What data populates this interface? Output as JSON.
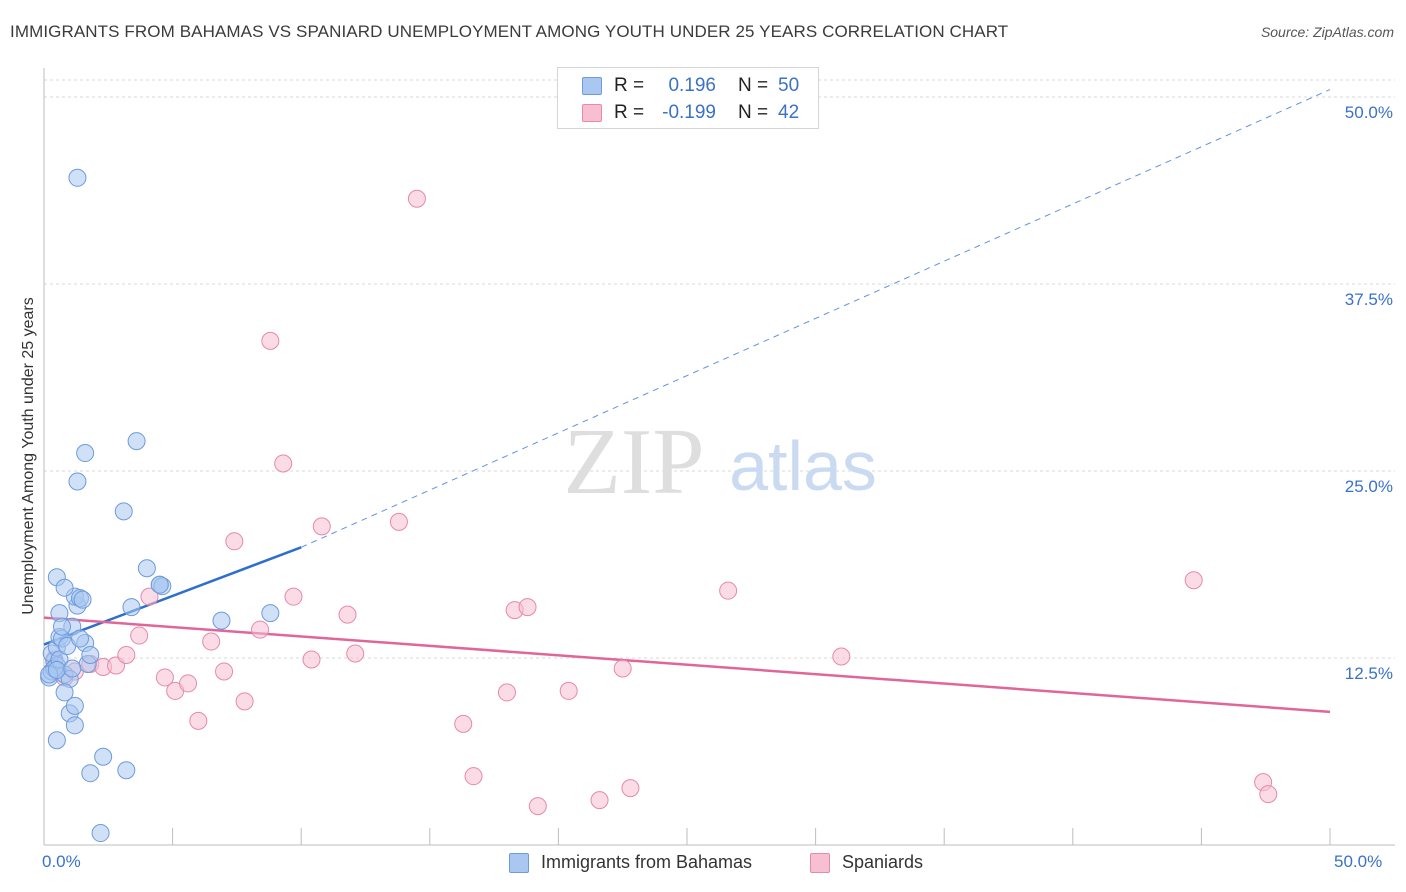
{
  "title": "IMMIGRANTS FROM BAHAMAS VS SPANIARD UNEMPLOYMENT AMONG YOUTH UNDER 25 YEARS CORRELATION CHART",
  "source": "Source: ZipAtlas.com",
  "watermark": {
    "zip": "ZIP",
    "atlas": "atlas"
  },
  "legend": {
    "r_label": "R =",
    "n_label": "N =",
    "series": [
      {
        "name": "Immigrants from Bahamas",
        "r": "0.196",
        "n": "50",
        "fill": "#a9c7f0",
        "stroke": "#6d9bdc"
      },
      {
        "name": "Spaniards",
        "r": "-0.199",
        "n": "42",
        "fill": "#f7bfd1",
        "stroke": "#e58aa8"
      }
    ]
  },
  "colors": {
    "blue_line": "#2e6fce",
    "pink_line": "#e0669a",
    "axis_text": "#3a72c8",
    "grid": "#d9d9d9"
  },
  "chart_data": {
    "type": "scatter",
    "title": "IMMIGRANTS FROM BAHAMAS VS SPANIARD UNEMPLOYMENT AMONG YOUTH UNDER 25 YEARS CORRELATION CHART",
    "xlabel": "",
    "ylabel": "Unemployment Among Youth under 25 years",
    "xlim": [
      0,
      50
    ],
    "ylim": [
      0,
      50
    ],
    "x_tick_labels": [
      "0.0%",
      "50.0%"
    ],
    "y_ticks": [
      12.5,
      25.0,
      37.5,
      50.0
    ],
    "y_tick_labels": [
      "12.5%",
      "25.0%",
      "37.5%",
      "50.0%"
    ],
    "series": [
      {
        "name": "Immigrants from Bahamas",
        "r": 0.196,
        "n": 50,
        "trend": {
          "x0": 0,
          "y0": 13.4,
          "x1": 10,
          "y1": 19.9,
          "extend_to_x": 50,
          "extend_to_y": 50.5
        },
        "points": [
          [
            0.2,
            11.2
          ],
          [
            0.3,
            11.6
          ],
          [
            0.4,
            12.3
          ],
          [
            0.3,
            12.8
          ],
          [
            0.5,
            13.2
          ],
          [
            0.6,
            13.9
          ],
          [
            0.5,
            12.0
          ],
          [
            0.8,
            11.4
          ],
          [
            0.4,
            11.8
          ],
          [
            0.6,
            12.4
          ],
          [
            0.7,
            13.8
          ],
          [
            0.9,
            13.3
          ],
          [
            1.0,
            11.1
          ],
          [
            0.8,
            10.2
          ],
          [
            1.1,
            14.6
          ],
          [
            1.3,
            16.0
          ],
          [
            1.2,
            16.6
          ],
          [
            1.4,
            16.5
          ],
          [
            0.6,
            15.5
          ],
          [
            0.7,
            14.6
          ],
          [
            1.5,
            16.4
          ],
          [
            1.6,
            13.5
          ],
          [
            1.4,
            13.8
          ],
          [
            1.7,
            12.1
          ],
          [
            1.8,
            12.7
          ],
          [
            0.5,
            17.9
          ],
          [
            0.8,
            17.2
          ],
          [
            1.3,
            24.3
          ],
          [
            1.6,
            26.2
          ],
          [
            1.3,
            44.6
          ],
          [
            3.6,
            27.0
          ],
          [
            3.1,
            22.3
          ],
          [
            4.5,
            17.4
          ],
          [
            4.6,
            17.3
          ],
          [
            4.5,
            17.4
          ],
          [
            3.4,
            15.9
          ],
          [
            4.0,
            18.5
          ],
          [
            6.9,
            15.0
          ],
          [
            8.8,
            15.5
          ],
          [
            1.0,
            8.8
          ],
          [
            1.2,
            9.3
          ],
          [
            1.2,
            8.0
          ],
          [
            0.5,
            7.0
          ],
          [
            1.8,
            4.8
          ],
          [
            2.3,
            5.9
          ],
          [
            3.2,
            5.0
          ],
          [
            2.2,
            0.8
          ],
          [
            0.2,
            11.4
          ],
          [
            0.5,
            11.7
          ],
          [
            1.1,
            11.8
          ]
        ]
      },
      {
        "name": "Spaniards",
        "r": -0.199,
        "n": 42,
        "trend": {
          "x0": 0,
          "y0": 15.2,
          "x1": 50,
          "y1": 8.9
        },
        "points": [
          [
            0.4,
            12.4
          ],
          [
            0.8,
            11.2
          ],
          [
            1.2,
            11.6
          ],
          [
            1.8,
            12.1
          ],
          [
            2.3,
            11.9
          ],
          [
            2.8,
            12.0
          ],
          [
            3.2,
            12.7
          ],
          [
            3.7,
            14.0
          ],
          [
            4.1,
            16.6
          ],
          [
            4.7,
            11.2
          ],
          [
            5.1,
            10.3
          ],
          [
            5.6,
            10.8
          ],
          [
            6.0,
            8.3
          ],
          [
            6.5,
            13.6
          ],
          [
            7.0,
            11.6
          ],
          [
            7.4,
            20.3
          ],
          [
            7.8,
            9.6
          ],
          [
            8.4,
            14.4
          ],
          [
            8.8,
            33.7
          ],
          [
            9.3,
            25.5
          ],
          [
            9.7,
            16.6
          ],
          [
            10.4,
            12.4
          ],
          [
            10.8,
            21.3
          ],
          [
            11.8,
            15.4
          ],
          [
            12.1,
            12.8
          ],
          [
            13.8,
            21.6
          ],
          [
            14.5,
            43.2
          ],
          [
            16.3,
            8.1
          ],
          [
            16.7,
            4.6
          ],
          [
            18.0,
            10.2
          ],
          [
            18.3,
            15.7
          ],
          [
            18.8,
            15.9
          ],
          [
            19.2,
            2.6
          ],
          [
            20.4,
            10.3
          ],
          [
            21.6,
            3.0
          ],
          [
            22.5,
            11.8
          ],
          [
            22.8,
            3.8
          ],
          [
            26.6,
            17.0
          ],
          [
            31.0,
            12.6
          ],
          [
            44.7,
            17.7
          ],
          [
            47.4,
            4.2
          ],
          [
            47.6,
            3.4
          ]
        ]
      }
    ]
  }
}
